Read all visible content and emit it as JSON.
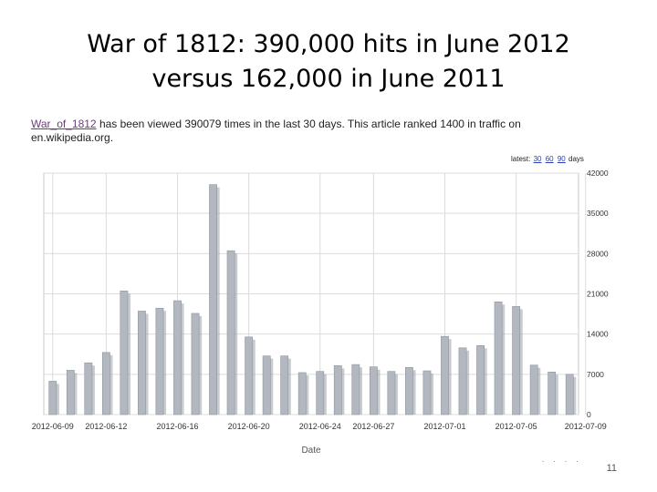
{
  "slide": {
    "title_line1": "War of 1812: 390,000 hits in  June 2012",
    "title_line2": "versus 162,000 in June 2011",
    "page_number": "11",
    "footer_dots": ". . . ."
  },
  "info": {
    "article_link": "War_of_1812",
    "text_main": " has been viewed 390079 times in the last 30 days. This article ranked 1400 in traffic on",
    "text_line2": "en.wikipedia.org."
  },
  "views": {
    "prefix": "latest",
    "opt1": "30",
    "opt2": "60",
    "opt3": "90",
    "suffix": "days"
  },
  "chart_data": {
    "type": "bar",
    "title": "",
    "xlabel": "Date",
    "ylabel": "",
    "ylim": [
      0,
      42000
    ],
    "yticks": [
      0,
      7000,
      14000,
      21000,
      28000,
      35000,
      42000
    ],
    "ytick_labels": [
      "0",
      "7000",
      "14000",
      "21000",
      "28000",
      "35000",
      "42000"
    ],
    "xtick_labels": [
      "2012-06-09",
      "2012-06-12",
      "2012-06-16",
      "2012-06-20",
      "2012-06-24",
      "2012-06-27",
      "2012-07-01",
      "2012-07-05",
      "2012-07-09"
    ],
    "xtick_day_index": [
      0,
      3,
      7,
      11,
      15,
      18,
      22,
      26,
      30
    ],
    "categories": [
      "2012-06-09",
      "2012-06-10",
      "2012-06-11",
      "2012-06-12",
      "2012-06-13",
      "2012-06-14",
      "2012-06-15",
      "2012-06-16",
      "2012-06-17",
      "2012-06-18",
      "2012-06-19",
      "2012-06-20",
      "2012-06-21",
      "2012-06-22",
      "2012-06-23",
      "2012-06-24",
      "2012-06-25",
      "2012-06-26",
      "2012-06-27",
      "2012-06-28",
      "2012-06-29",
      "2012-06-30",
      "2012-07-01",
      "2012-07-02",
      "2012-07-03",
      "2012-07-04",
      "2012-07-05",
      "2012-07-06",
      "2012-07-07",
      "2012-07-08"
    ],
    "values": [
      5800,
      7700,
      9000,
      10800,
      21500,
      18000,
      18500,
      19800,
      17600,
      40000,
      28500,
      13500,
      10200,
      10200,
      7300,
      7500,
      8500,
      8700,
      8300,
      7500,
      8200,
      7600,
      13600,
      11600,
      12000,
      19600,
      18800,
      8600,
      7400,
      7000
    ],
    "bar_color": "#b3b8c0",
    "shadow_color": "#9aa0a8",
    "grid_color": "#dcdcdc"
  }
}
